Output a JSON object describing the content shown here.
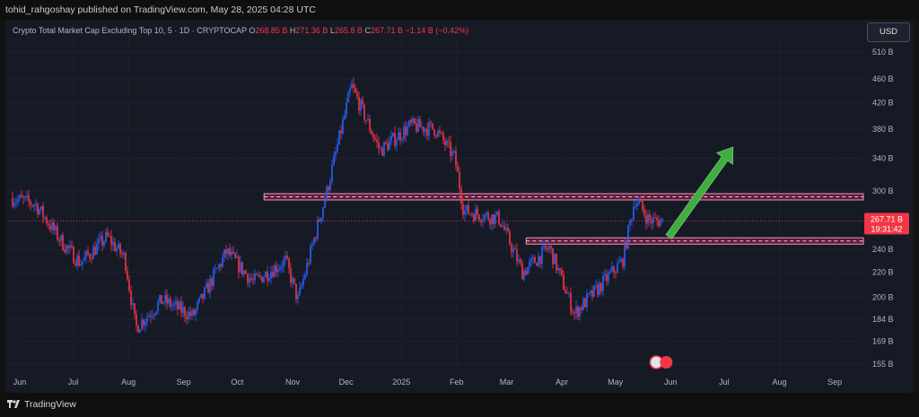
{
  "header": {
    "publisher": "tohid_rahgoshay published on TradingView.com, May 28, 2025 04:28 UTC"
  },
  "symbol": {
    "name": "Crypto Total Market Cap Excluding Top 10, 5 · 1D · CRYPTOCAP",
    "open_label": "O",
    "open": "268.85 B",
    "high_label": "H",
    "high": "271.36 B",
    "low_label": "L",
    "low": "265.8 B",
    "close_label": "C",
    "close": "267.71 B",
    "change": "−1.14 B (−0.42%)"
  },
  "currency_button": "USD",
  "price_badge": {
    "value": "267.71 B",
    "timer": "19:31:42"
  },
  "footer": {
    "brand": "TradingView"
  },
  "colors": {
    "up": "#2962ff",
    "down": "#f23645",
    "zone_fill": "#c2185b",
    "zone_border": "#e0a0b8",
    "arrow": "#3fae3f",
    "price_badge": "#f23645"
  },
  "chart_data": {
    "type": "candlestick",
    "y_axis": {
      "scale": "log",
      "ticks": [
        "510 B",
        "460 B",
        "420 B",
        "380 B",
        "340 B",
        "300 B",
        "240 B",
        "220 B",
        "200 B",
        "184 B",
        "169 B",
        "155 B"
      ]
    },
    "x_axis": {
      "ticks": [
        "Jun",
        "Jul",
        "Aug",
        "Sep",
        "Oct",
        "Nov",
        "Dec",
        "2025",
        "Feb",
        "Mar",
        "Apr",
        "May",
        "Jun",
        "Jul",
        "Aug",
        "Sep"
      ]
    },
    "close_path": [
      {
        "date": "2024-05-28",
        "value": 292
      },
      {
        "date": "2024-06-10",
        "value": 285
      },
      {
        "date": "2024-06-25",
        "value": 246
      },
      {
        "date": "2024-07-05",
        "value": 228
      },
      {
        "date": "2024-07-20",
        "value": 252
      },
      {
        "date": "2024-07-30",
        "value": 232
      },
      {
        "date": "2024-08-05",
        "value": 178
      },
      {
        "date": "2024-08-20",
        "value": 198
      },
      {
        "date": "2024-09-06",
        "value": 186
      },
      {
        "date": "2024-09-25",
        "value": 238
      },
      {
        "date": "2024-10-10",
        "value": 212
      },
      {
        "date": "2024-10-28",
        "value": 230
      },
      {
        "date": "2024-11-04",
        "value": 198
      },
      {
        "date": "2024-11-20",
        "value": 298
      },
      {
        "date": "2024-12-04",
        "value": 448
      },
      {
        "date": "2024-12-20",
        "value": 350
      },
      {
        "date": "2025-01-06",
        "value": 385
      },
      {
        "date": "2025-01-20",
        "value": 380
      },
      {
        "date": "2025-01-31",
        "value": 340
      },
      {
        "date": "2025-02-05",
        "value": 278
      },
      {
        "date": "2025-02-25",
        "value": 270
      },
      {
        "date": "2025-03-10",
        "value": 220
      },
      {
        "date": "2025-03-25",
        "value": 242
      },
      {
        "date": "2025-04-08",
        "value": 188
      },
      {
        "date": "2025-04-20",
        "value": 205
      },
      {
        "date": "2025-05-05",
        "value": 230
      },
      {
        "date": "2025-05-12",
        "value": 292
      },
      {
        "date": "2025-05-20",
        "value": 268
      },
      {
        "date": "2025-05-28",
        "value": 267.71
      }
    ],
    "horizontal_zones": [
      {
        "low": 290,
        "high": 297
      },
      {
        "low": 245,
        "high": 251
      }
    ],
    "annotation": "green upward arrow"
  }
}
